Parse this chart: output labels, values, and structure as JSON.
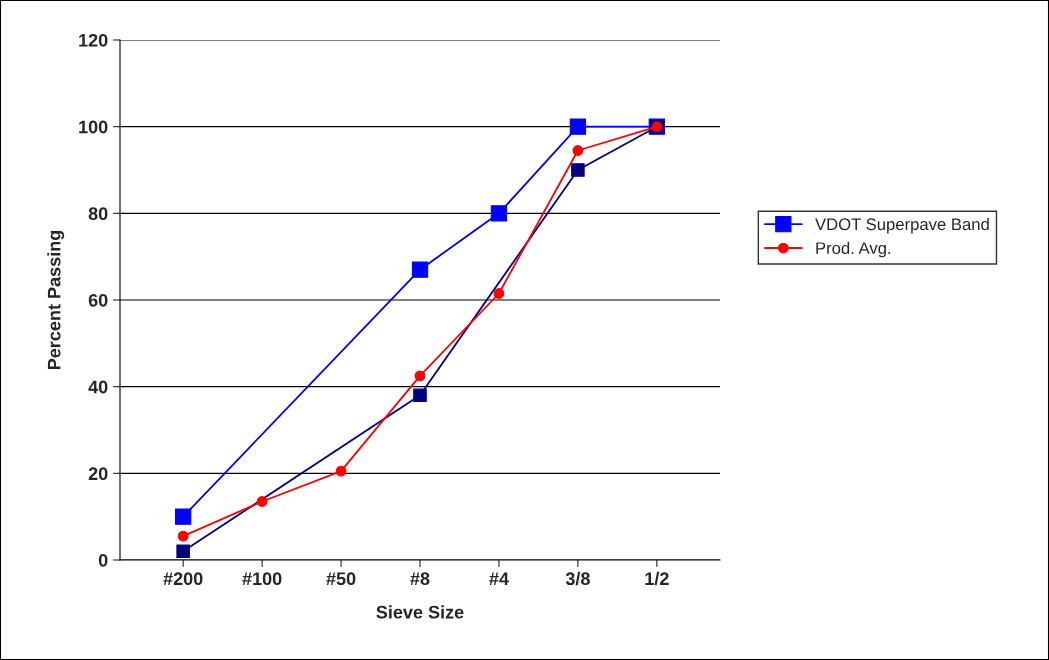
{
  "chart_data": {
    "type": "line",
    "xlabel": "Sieve Size",
    "ylabel": "Percent Passing",
    "categories": [
      "#200",
      "#100",
      "#50",
      "#8",
      "#4",
      "3/8",
      "1/2"
    ],
    "ylim": [
      0,
      120
    ],
    "yticks": [
      0,
      20,
      40,
      60,
      80,
      100,
      120
    ],
    "grid": "y",
    "legend": "right",
    "series": [
      {
        "name": "VDOT Superpave Band",
        "color": "#0000ff",
        "marker": "square",
        "values": [
          10,
          null,
          null,
          67,
          80,
          100,
          100
        ]
      },
      {
        "color": "#000080",
        "marker": "square",
        "values": [
          2,
          null,
          null,
          38,
          null,
          90,
          100
        ]
      },
      {
        "name": "Prod. Avg.",
        "color": "#ff0000",
        "marker": "circle",
        "values": [
          5.5,
          13.5,
          20.5,
          42.5,
          61.5,
          94.5,
          100
        ]
      }
    ]
  }
}
